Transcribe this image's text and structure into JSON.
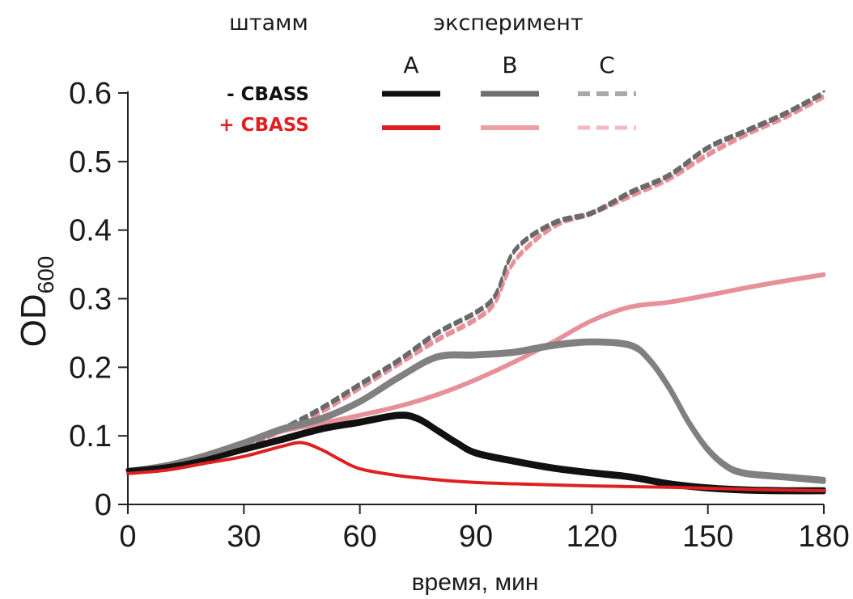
{
  "chart_data": {
    "type": "line",
    "xlabel": "время, мин",
    "ylabel_main": "OD",
    "ylabel_sub": "600",
    "xlim": [
      0,
      180
    ],
    "ylim": [
      0,
      0.6
    ],
    "xticks": [
      "0",
      "30",
      "60",
      "90",
      "120",
      "150",
      "180"
    ],
    "yticks": [
      "0",
      "0.1",
      "0.2",
      "0.3",
      "0.4",
      "0.5",
      "0.6"
    ],
    "grid": false,
    "legend": {
      "position": "top",
      "strain_header": "штамм",
      "experiment_header": "эксперимент",
      "experiments": [
        "A",
        "B",
        "C"
      ],
      "strains": [
        "- CBASS",
        "+ CBASS"
      ],
      "strain_colors": [
        "#111111",
        "#e02020"
      ]
    },
    "series": [
      {
        "strain": "- CBASS",
        "experiment": "A",
        "color": "#111111",
        "dash": false,
        "width": 5,
        "replicates": 3,
        "points": [
          [
            0,
            0.05
          ],
          [
            10,
            0.055
          ],
          [
            20,
            0.065
          ],
          [
            30,
            0.08
          ],
          [
            40,
            0.095
          ],
          [
            50,
            0.11
          ],
          [
            60,
            0.12
          ],
          [
            70,
            0.13
          ],
          [
            75,
            0.125
          ],
          [
            80,
            0.108
          ],
          [
            85,
            0.09
          ],
          [
            90,
            0.075
          ],
          [
            100,
            0.063
          ],
          [
            110,
            0.053
          ],
          [
            120,
            0.046
          ],
          [
            130,
            0.04
          ],
          [
            140,
            0.03
          ],
          [
            150,
            0.024
          ],
          [
            160,
            0.021
          ],
          [
            170,
            0.02
          ],
          [
            180,
            0.02
          ]
        ]
      },
      {
        "strain": "- CBASS",
        "experiment": "B",
        "color": "#808080",
        "dash": false,
        "width": 5,
        "replicates": 3,
        "points": [
          [
            0,
            0.05
          ],
          [
            10,
            0.058
          ],
          [
            20,
            0.072
          ],
          [
            30,
            0.09
          ],
          [
            40,
            0.11
          ],
          [
            50,
            0.125
          ],
          [
            60,
            0.15
          ],
          [
            70,
            0.185
          ],
          [
            80,
            0.215
          ],
          [
            90,
            0.218
          ],
          [
            100,
            0.222
          ],
          [
            110,
            0.232
          ],
          [
            120,
            0.237
          ],
          [
            130,
            0.232
          ],
          [
            135,
            0.21
          ],
          [
            140,
            0.17
          ],
          [
            145,
            0.12
          ],
          [
            150,
            0.08
          ],
          [
            155,
            0.055
          ],
          [
            160,
            0.045
          ],
          [
            170,
            0.04
          ],
          [
            180,
            0.035
          ]
        ]
      },
      {
        "strain": "- CBASS",
        "experiment": "C",
        "color": "#6a6a6a",
        "dash": true,
        "width": 3,
        "replicates": 3,
        "points": [
          [
            0,
            0.05
          ],
          [
            10,
            0.053
          ],
          [
            20,
            0.063
          ],
          [
            30,
            0.085
          ],
          [
            40,
            0.11
          ],
          [
            50,
            0.14
          ],
          [
            60,
            0.175
          ],
          [
            70,
            0.21
          ],
          [
            80,
            0.25
          ],
          [
            90,
            0.28
          ],
          [
            95,
            0.305
          ],
          [
            100,
            0.37
          ],
          [
            110,
            0.41
          ],
          [
            120,
            0.425
          ],
          [
            130,
            0.455
          ],
          [
            140,
            0.48
          ],
          [
            150,
            0.52
          ],
          [
            160,
            0.545
          ],
          [
            170,
            0.57
          ],
          [
            180,
            0.6
          ]
        ]
      },
      {
        "strain": "+ CBASS",
        "experiment": "A",
        "color": "#e02020",
        "dash": false,
        "width": 4,
        "replicates": 1,
        "points": [
          [
            0,
            0.045
          ],
          [
            10,
            0.05
          ],
          [
            20,
            0.06
          ],
          [
            30,
            0.07
          ],
          [
            40,
            0.085
          ],
          [
            45,
            0.09
          ],
          [
            50,
            0.08
          ],
          [
            55,
            0.065
          ],
          [
            60,
            0.052
          ],
          [
            70,
            0.042
          ],
          [
            80,
            0.036
          ],
          [
            90,
            0.032
          ],
          [
            100,
            0.03
          ],
          [
            120,
            0.027
          ],
          [
            140,
            0.025
          ],
          [
            160,
            0.022
          ],
          [
            180,
            0.02
          ]
        ]
      },
      {
        "strain": "+ CBASS",
        "experiment": "B",
        "color": "#e8909a",
        "dash": false,
        "width": 4,
        "replicates": 2,
        "points": [
          [
            0,
            0.05
          ],
          [
            10,
            0.058
          ],
          [
            20,
            0.07
          ],
          [
            30,
            0.088
          ],
          [
            40,
            0.107
          ],
          [
            50,
            0.118
          ],
          [
            60,
            0.13
          ],
          [
            70,
            0.143
          ],
          [
            80,
            0.16
          ],
          [
            90,
            0.182
          ],
          [
            100,
            0.208
          ],
          [
            110,
            0.237
          ],
          [
            120,
            0.268
          ],
          [
            130,
            0.288
          ],
          [
            140,
            0.295
          ],
          [
            150,
            0.305
          ],
          [
            160,
            0.316
          ],
          [
            170,
            0.326
          ],
          [
            180,
            0.335
          ]
        ]
      },
      {
        "strain": "+ CBASS",
        "experiment": "C",
        "color": "#e8909a",
        "dash": true,
        "width": 3,
        "replicates": 3,
        "points": [
          [
            0,
            0.05
          ],
          [
            10,
            0.052
          ],
          [
            20,
            0.062
          ],
          [
            30,
            0.083
          ],
          [
            40,
            0.108
          ],
          [
            50,
            0.135
          ],
          [
            60,
            0.17
          ],
          [
            70,
            0.205
          ],
          [
            80,
            0.24
          ],
          [
            90,
            0.27
          ],
          [
            95,
            0.295
          ],
          [
            100,
            0.355
          ],
          [
            110,
            0.405
          ],
          [
            120,
            0.425
          ],
          [
            130,
            0.45
          ],
          [
            140,
            0.475
          ],
          [
            150,
            0.51
          ],
          [
            160,
            0.54
          ],
          [
            170,
            0.565
          ],
          [
            180,
            0.595
          ]
        ]
      }
    ]
  }
}
